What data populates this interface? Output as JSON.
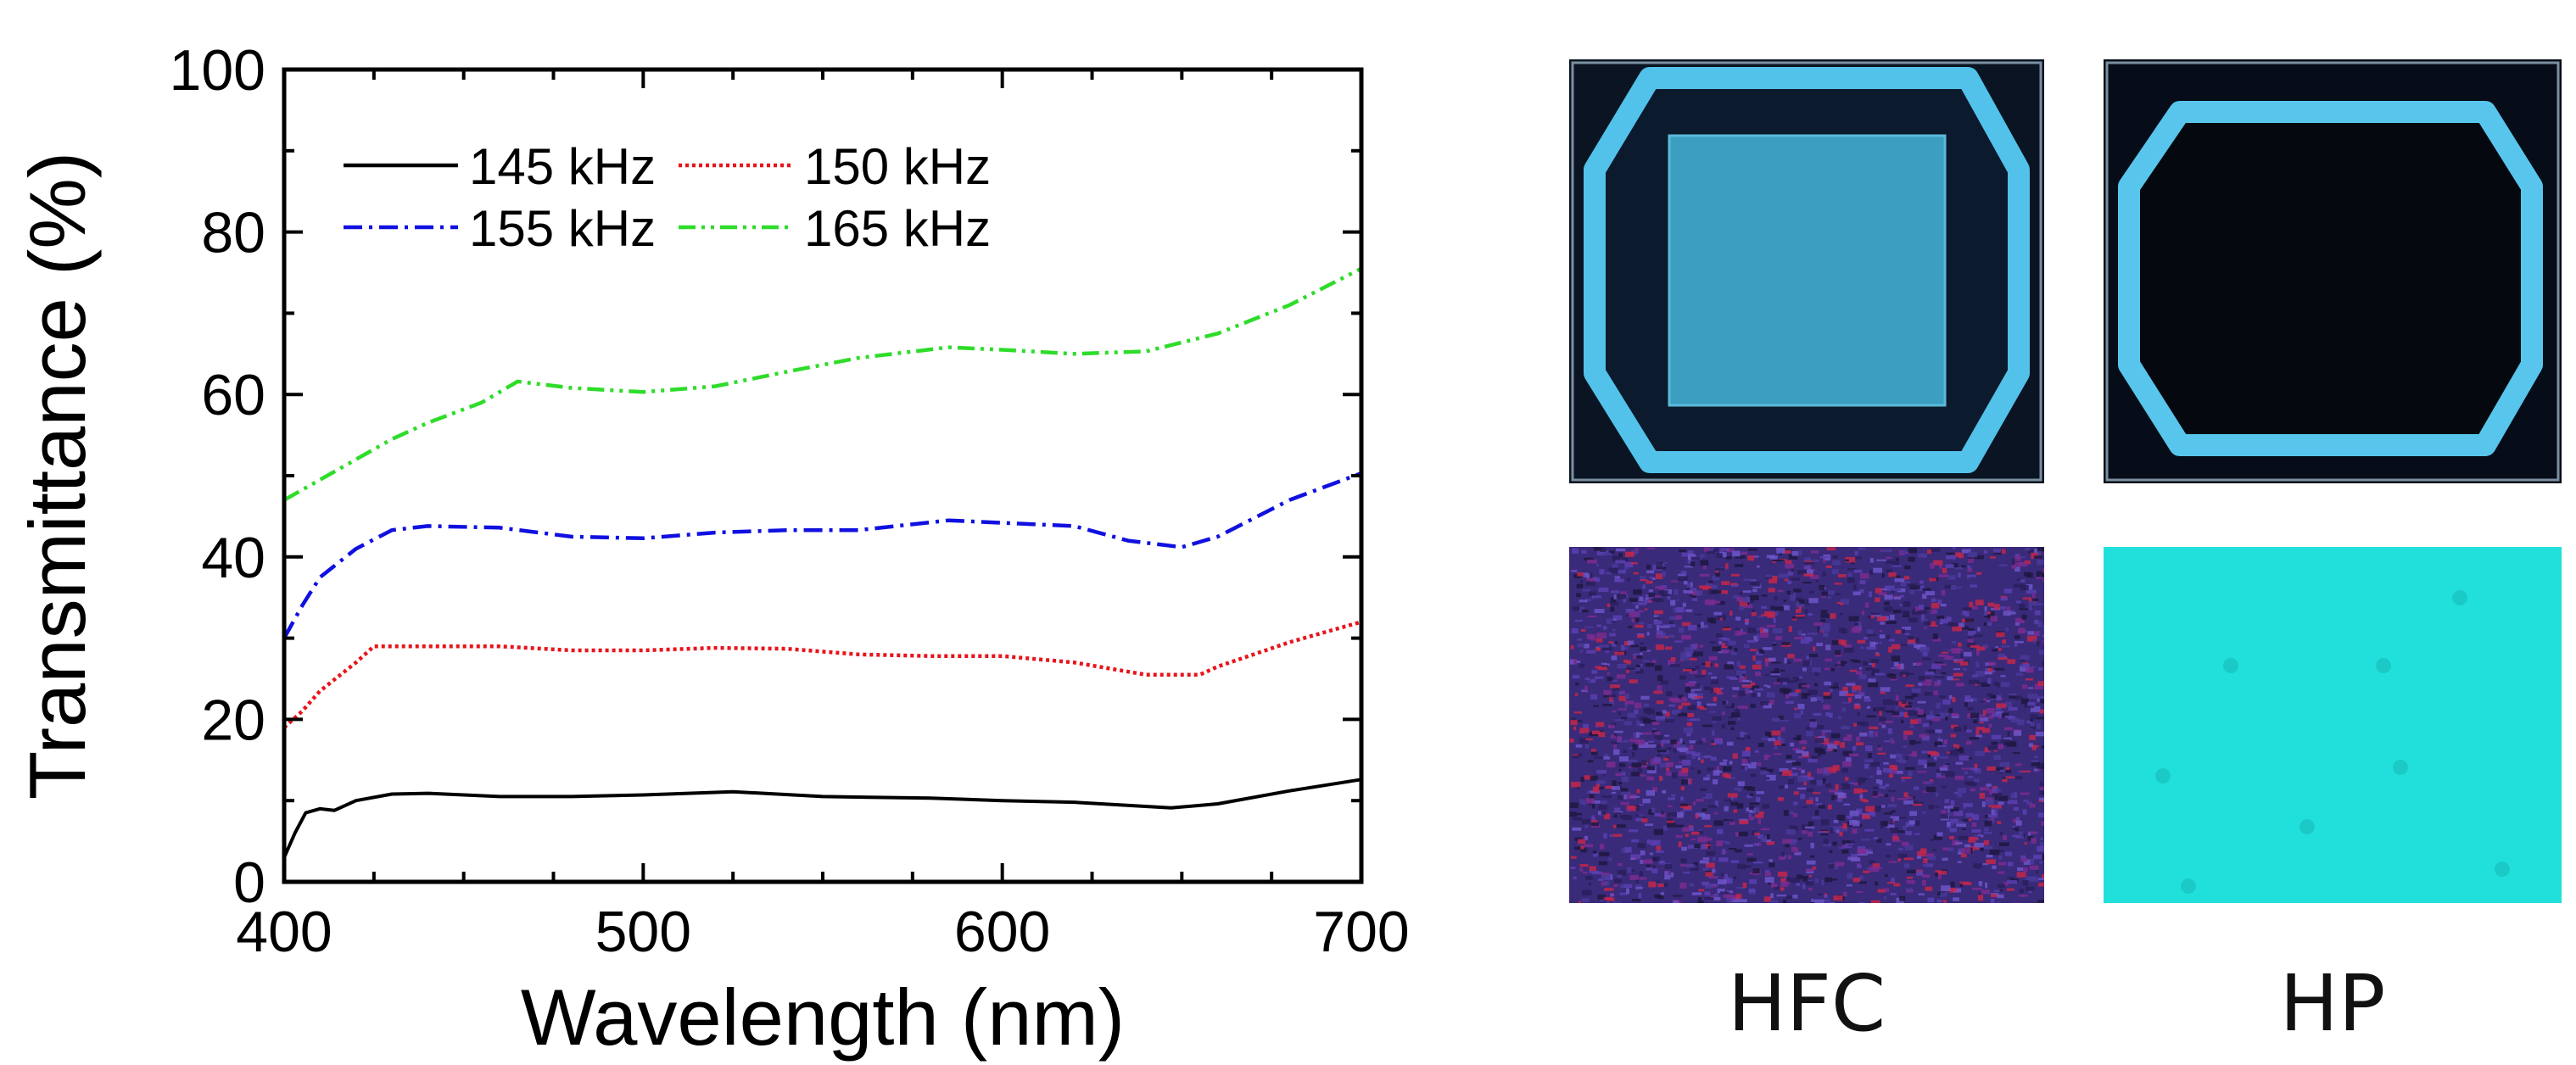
{
  "chart_data": {
    "type": "line",
    "xlabel": "Wavelength (nm)",
    "ylabel": "Transmittance (%)",
    "xlim": [
      400,
      700
    ],
    "ylim": [
      0,
      100
    ],
    "xticks": [
      400,
      500,
      600,
      700
    ],
    "yticks": [
      0,
      20,
      40,
      60,
      80,
      100
    ],
    "grid": false,
    "legend_position": "top-left",
    "series": [
      {
        "name": "145 kHz",
        "color": "#000000",
        "style": "solid",
        "x": [
          400,
          403,
          406,
          410,
          414,
          420,
          430,
          440,
          460,
          480,
          500,
          525,
          550,
          580,
          600,
          620,
          647,
          660,
          680,
          700
        ],
        "y": [
          3,
          6,
          8.5,
          9,
          8.8,
          10,
          10.8,
          10.9,
          10.5,
          10.5,
          10.7,
          11.1,
          10.5,
          10.3,
          10,
          9.8,
          9.1,
          9.6,
          11.2,
          12.6
        ]
      },
      {
        "name": "150 kHz",
        "color": "#e8141b",
        "style": "dotted",
        "x": [
          400,
          405,
          410,
          420,
          425,
          430,
          440,
          460,
          480,
          500,
          520,
          540,
          560,
          580,
          600,
          620,
          640,
          655,
          660,
          680,
          700
        ],
        "y": [
          19,
          21,
          23.5,
          27,
          29,
          29,
          29,
          29,
          28.5,
          28.5,
          28.8,
          28.7,
          28,
          27.8,
          27.8,
          27,
          25.5,
          25.5,
          26.5,
          29.5,
          32
        ]
      },
      {
        "name": "155 kHz",
        "color": "#1010e0",
        "style": "dashdot",
        "x": [
          400,
          405,
          410,
          420,
          430,
          440,
          460,
          480,
          500,
          520,
          540,
          560,
          585,
          600,
          620,
          635,
          650,
          660,
          680,
          700
        ],
        "y": [
          30,
          34,
          37.5,
          41,
          43.3,
          43.8,
          43.6,
          42.5,
          42.3,
          43,
          43.3,
          43.3,
          44.5,
          44.2,
          43.8,
          42,
          41.2,
          42.5,
          47,
          50.3
        ]
      },
      {
        "name": "165 kHz",
        "color": "#2edc2a",
        "style": "dashdotdot",
        "x": [
          400,
          410,
          420,
          430,
          440,
          455,
          465,
          480,
          500,
          520,
          540,
          560,
          585,
          600,
          620,
          640,
          660,
          680,
          700
        ],
        "y": [
          47,
          49.5,
          52,
          54.5,
          56.5,
          59,
          61.6,
          60.8,
          60.3,
          61,
          62.8,
          64.5,
          65.8,
          65.5,
          65,
          65.3,
          67.5,
          71,
          75.5
        ]
      }
    ]
  },
  "photos": {
    "hfc_label": "HFC",
    "hp_label": "HP"
  },
  "colors": {
    "device_frame": "#55c8ee",
    "device_dark": "#08111d",
    "hfc_film": "#3a9ec0",
    "hfc_micro_base": "#3a2a7a",
    "hp_micro_base": "#21e0dc"
  }
}
